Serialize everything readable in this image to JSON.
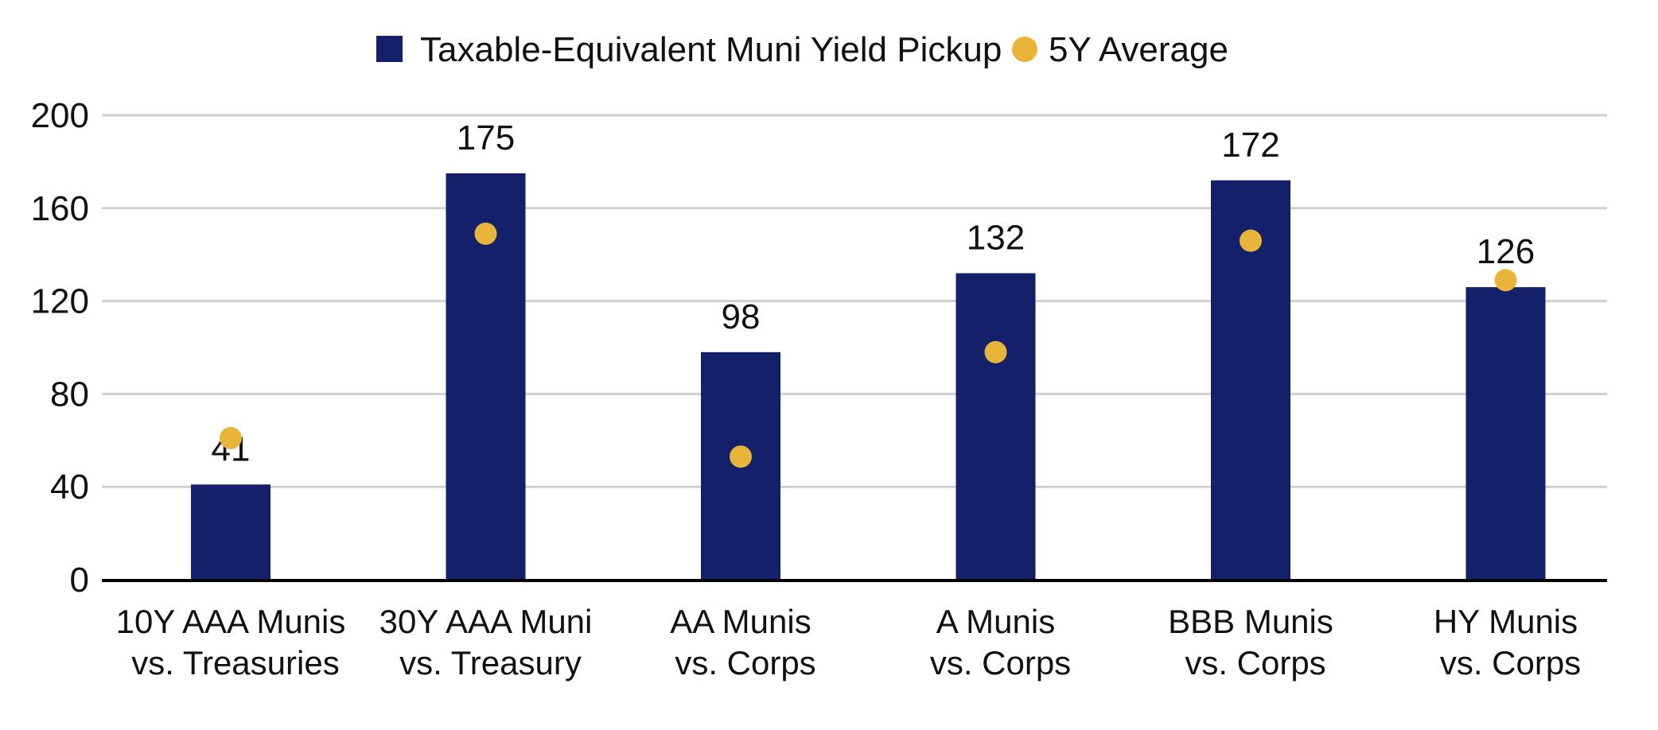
{
  "chart_data": {
    "type": "bar",
    "title": "",
    "xlabel": "",
    "ylabel": "",
    "ylim": [
      0,
      200
    ],
    "yticks": [
      0,
      40,
      80,
      120,
      160,
      200
    ],
    "grid": true,
    "legend_position": "top-center",
    "categories": [
      [
        "10Y AAA Munis",
        "vs. Treasuries"
      ],
      [
        "30Y AAA Muni",
        "vs. Treasury"
      ],
      [
        "AA Munis",
        "vs. Corps"
      ],
      [
        "A Munis",
        "vs. Corps"
      ],
      [
        "BBB Munis",
        "vs. Corps"
      ],
      [
        "HY Munis",
        "vs. Corps"
      ]
    ],
    "series": [
      {
        "name": "Taxable-Equivalent Muni Yield Pickup",
        "kind": "bar",
        "color": "#15206a",
        "values": [
          41,
          175,
          98,
          132,
          172,
          126
        ]
      },
      {
        "name": "5Y Average",
        "kind": "dot",
        "color": "#e8b53a",
        "values": [
          61,
          149,
          53,
          98,
          146,
          129
        ]
      }
    ],
    "data_labels": [
      "41",
      "175",
      "98",
      "132",
      "172",
      "126"
    ]
  }
}
